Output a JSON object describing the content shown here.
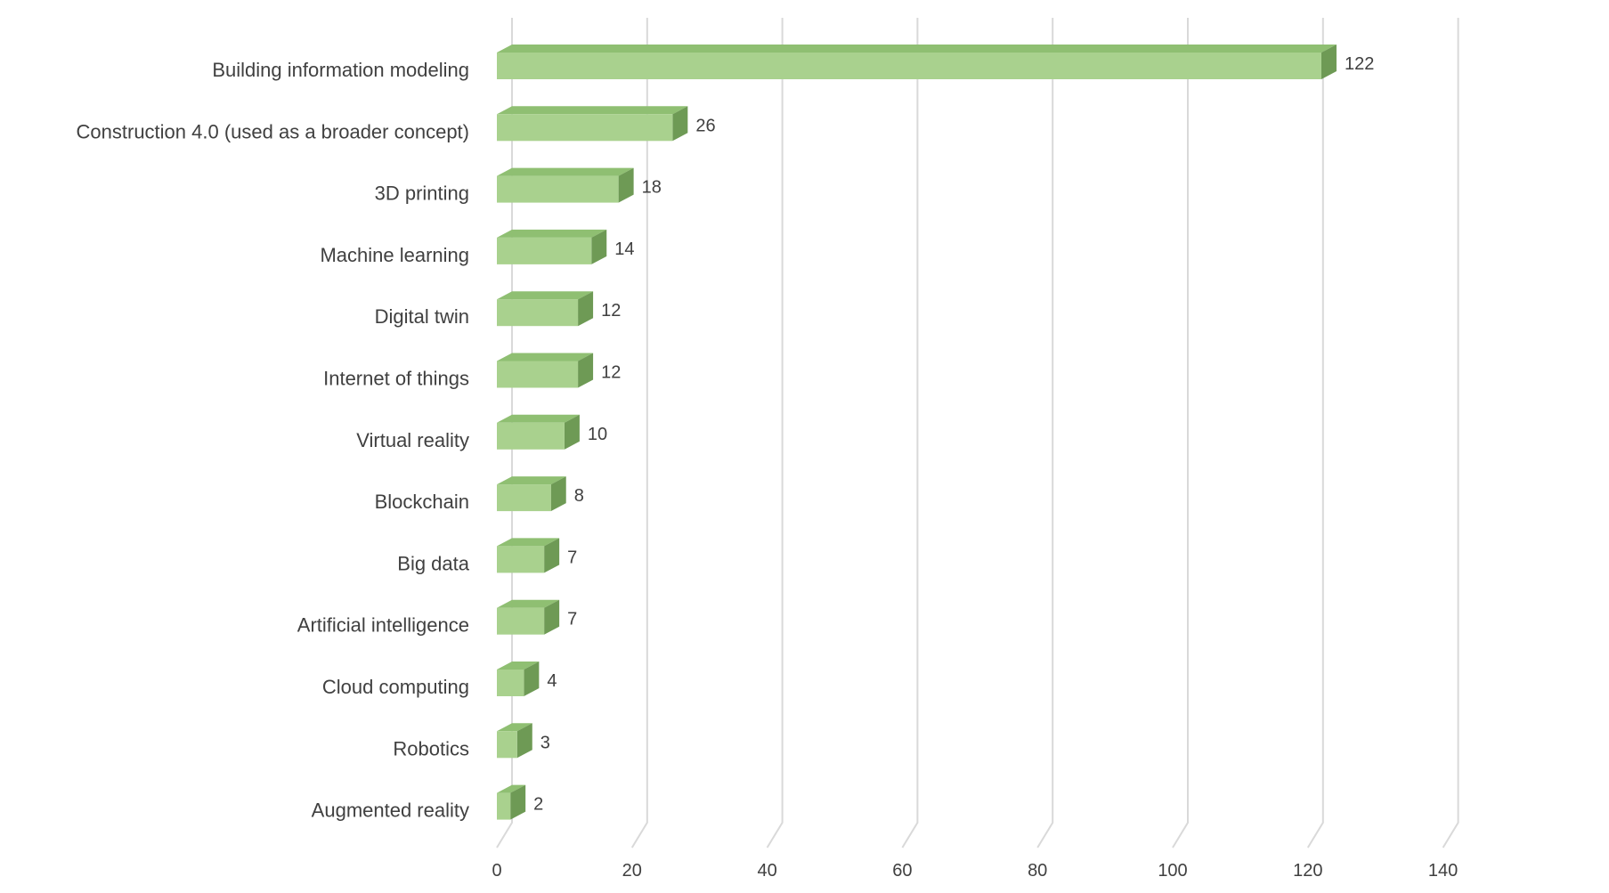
{
  "chart_data": {
    "type": "bar",
    "orientation": "horizontal",
    "style": "3d",
    "categories": [
      "Building information modeling",
      "Construction 4.0 (used as a broader concept)",
      "3D printing",
      "Machine learning",
      "Digital twin",
      "Internet of things",
      "Virtual reality",
      "Blockchain",
      "Big data",
      "Artificial intelligence",
      "Cloud computing",
      "Robotics",
      "Augmented reality"
    ],
    "values": [
      122,
      26,
      18,
      14,
      12,
      12,
      10,
      8,
      7,
      7,
      4,
      3,
      2
    ],
    "data_labels": [
      "122",
      "26",
      "18",
      "14",
      "12",
      "12",
      "10",
      "8",
      "7",
      "7",
      "4",
      "3",
      "2"
    ],
    "x_ticks": [
      "0",
      "20",
      "40",
      "60",
      "80",
      "100",
      "120",
      "140"
    ],
    "xlim": [
      0,
      140
    ],
    "title": "",
    "xlabel": "",
    "ylabel": "",
    "grid": "vertical",
    "legend": "none",
    "colors": {
      "bar_front": "#a9d18e",
      "bar_top": "#8fbf72",
      "bar_side": "#6e9a55",
      "grid": "#d9d9d9",
      "text": "#404040"
    }
  }
}
